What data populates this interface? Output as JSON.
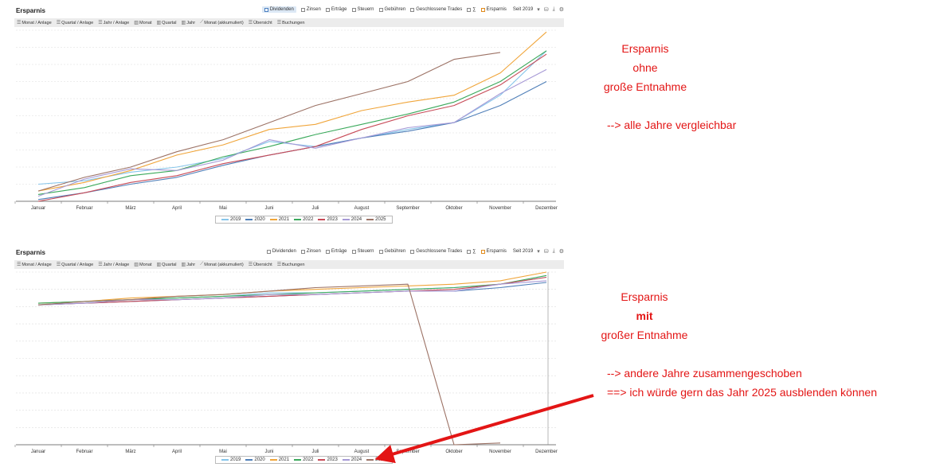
{
  "colors": {
    "2019": "#86c5ea",
    "2020": "#4f7fb8",
    "2021": "#f0a53a",
    "2022": "#3aa95b",
    "2023": "#c74a57",
    "2024": "#a79ad6",
    "2025": "#9c7265",
    "annotation": "#e31515",
    "grid": "#dddddd"
  },
  "toolbar": {
    "items": [
      {
        "label": "Dividenden",
        "active": true,
        "checkbox": "blue"
      },
      {
        "label": "Zinsen",
        "active": false,
        "checkbox": "gray"
      },
      {
        "label": "Erträge",
        "active": false,
        "checkbox": "gray"
      },
      {
        "label": "Steuern",
        "active": false,
        "checkbox": "gray"
      },
      {
        "label": "Gebühren",
        "active": false,
        "checkbox": "gray"
      },
      {
        "label": "Geschlossene Trades",
        "active": false,
        "checkbox": "gray"
      },
      {
        "label": "∑",
        "active": false,
        "checkbox": "gray"
      },
      {
        "label": "Ersparnis",
        "active": false,
        "checkbox": "orange"
      }
    ],
    "period": "Seit 2019",
    "icons": [
      "dropdown-arrow-icon",
      "database-icon",
      "download-icon",
      "settings-gear-icon"
    ]
  },
  "tabs": [
    {
      "label": "Monat / Anlage",
      "icon": "table-icon"
    },
    {
      "label": "Quartal / Anlage",
      "icon": "table-icon"
    },
    {
      "label": "Jahr / Anlage",
      "icon": "table-icon"
    },
    {
      "label": "Monat",
      "icon": "bar-chart-icon"
    },
    {
      "label": "Quartal",
      "icon": "bar-chart-icon"
    },
    {
      "label": "Jahr",
      "icon": "bar-chart-icon"
    },
    {
      "label": "Monat (akkumuliert)",
      "icon": "line-chart-icon"
    },
    {
      "label": "Übersicht",
      "icon": "table-icon"
    },
    {
      "label": "Buchungen",
      "icon": "table-icon"
    }
  ],
  "chart_data": [
    {
      "type": "line",
      "title": "Ersparnis",
      "xlabel": "",
      "ylabel": "",
      "grid": true,
      "legend_position": "bottom-center",
      "categories": [
        "Januar",
        "Februar",
        "März",
        "April",
        "Mai",
        "Juni",
        "Juli",
        "August",
        "September",
        "Oktober",
        "November",
        "Dezember"
      ],
      "ylim": [
        0,
        100
      ],
      "series": [
        {
          "name": "2019",
          "values": [
            10,
            12,
            17,
            20,
            25,
            35,
            32,
            37,
            42,
            46,
            62,
            88
          ]
        },
        {
          "name": "2020",
          "values": [
            1,
            5,
            10,
            14,
            21,
            27,
            32,
            37,
            41,
            46,
            56,
            70
          ]
        },
        {
          "name": "2021",
          "values": [
            6,
            11,
            18,
            27,
            33,
            42,
            45,
            53,
            58,
            62,
            75,
            99
          ]
        },
        {
          "name": "2022",
          "values": [
            4,
            8,
            15,
            18,
            26,
            32,
            39,
            45,
            51,
            58,
            70,
            88
          ]
        },
        {
          "name": "2023",
          "values": [
            0,
            5,
            11,
            15,
            22,
            27,
            32,
            42,
            50,
            56,
            68,
            86
          ]
        },
        {
          "name": "2024",
          "values": [
            3,
            13,
            19,
            18,
            24,
            36,
            31,
            37,
            43,
            46,
            63,
            77
          ]
        },
        {
          "name": "2025",
          "values": [
            6,
            14,
            20,
            29,
            36,
            46,
            56,
            63,
            70,
            83,
            87,
            null
          ]
        }
      ]
    },
    {
      "type": "line",
      "title": "Ersparnis",
      "xlabel": "",
      "ylabel": "",
      "grid": true,
      "legend_position": "bottom-center",
      "categories": [
        "Januar",
        "Februar",
        "März",
        "April",
        "Mai",
        "Juni",
        "Juli",
        "August",
        "September",
        "Oktober",
        "November",
        "Dezember"
      ],
      "ylim": [
        0,
        100
      ],
      "series": [
        {
          "name": "2019",
          "values": [
            82,
            83,
            84,
            85,
            86,
            88,
            88,
            89,
            90,
            91,
            93,
            97
          ]
        },
        {
          "name": "2020",
          "values": [
            81,
            82,
            83,
            84,
            85,
            86,
            87,
            88,
            89,
            89,
            91,
            94
          ]
        },
        {
          "name": "2021",
          "values": [
            82,
            83,
            85,
            86,
            87,
            89,
            90,
            91,
            92,
            93,
            95,
            100
          ]
        },
        {
          "name": "2022",
          "values": [
            82,
            83,
            84,
            85,
            86,
            87,
            88,
            89,
            90,
            91,
            93,
            98
          ]
        },
        {
          "name": "2023",
          "values": [
            81,
            82,
            83,
            84,
            85,
            86,
            87,
            88,
            89,
            90,
            93,
            97
          ]
        },
        {
          "name": "2024",
          "values": [
            81,
            82,
            84,
            84,
            85,
            87,
            87,
            88,
            89,
            89,
            93,
            95
          ]
        },
        {
          "name": "2025",
          "values": [
            81,
            83,
            84,
            86,
            87,
            89,
            91,
            92,
            93,
            0,
            1,
            null
          ]
        }
      ]
    }
  ],
  "annotations": {
    "top": {
      "line1": "Ersparnis",
      "line2": "ohne",
      "line3": "große Entnahme",
      "line4": "--> alle Jahre vergleichbar"
    },
    "bottom": {
      "line1": "Ersparnis",
      "line2": "mit",
      "line3": "großer Entnahme",
      "line4": "--> andere Jahre zusammengeschoben",
      "line5": "==> ich würde gern das Jahr 2025 ausblenden können"
    }
  }
}
